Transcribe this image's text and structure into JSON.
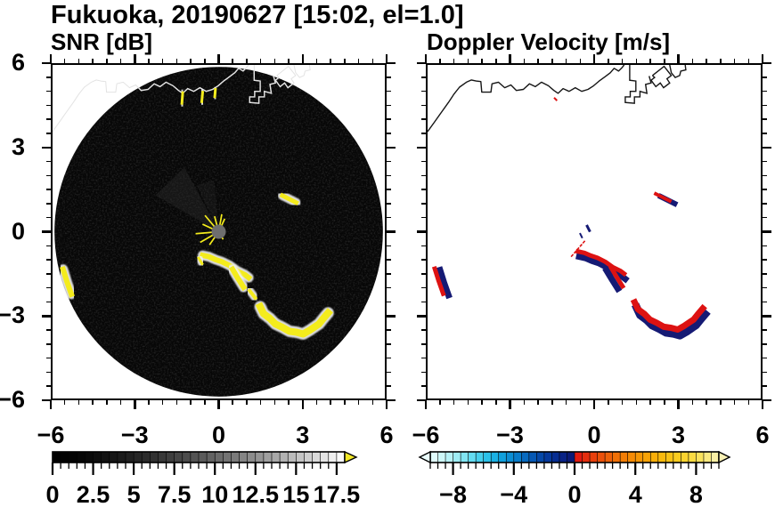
{
  "title": "Fukuoka, 20190627 [15:02, el=1.0]",
  "panels": {
    "snr": {
      "title": "SNR [dB]"
    },
    "vel": {
      "title": "Doppler Velocity [m/s]"
    }
  },
  "colors": {
    "echo_yellow": "#f4ec1c",
    "echo_halo": "#f2f2f2",
    "vel_red": "#dd1212",
    "vel_navy": "#151a74",
    "coast_left": "#fafafa",
    "coast_left_faint": "#cccccc",
    "coast_right": "#151515",
    "radar_disk": "#070707",
    "center_dot": "#6e6e6e",
    "frame": "#000000"
  },
  "chart_data": {
    "type": "heatmap",
    "suptitle": "Fukuoka, 20190627 [15:02, el=1.0]",
    "panels": [
      {
        "title": "SNR [dB]",
        "xlim": [
          -6,
          6
        ],
        "ylim": [
          -6,
          6
        ],
        "colorbar": {
          "range": [
            0,
            18
          ],
          "tick_values": [
            0,
            2.5,
            5,
            7.5,
            10,
            12.5,
            15,
            17.5
          ],
          "tick_labels": [
            "0",
            "2.5",
            "5",
            "7.5",
            "10",
            "12.5",
            "15",
            "17.5"
          ],
          "minor_step": 0.5,
          "major_step": 2.5,
          "style": "grayscale black to white, yellow over-range arrow"
        }
      },
      {
        "title": "Doppler Velocity [m/s]",
        "xlim": [
          -6,
          6
        ],
        "ylim": [
          -6,
          6
        ],
        "colorbar": {
          "range": [
            -9.5,
            9.5
          ],
          "tick_values": [
            -8,
            -4,
            0,
            4,
            8
          ],
          "tick_labels": [
            "−8",
            "−4",
            "0",
            "4",
            "8"
          ],
          "minor_step": 0.5,
          "major_step": 4,
          "style": "diverging cyan-blue-navy / red-orange-cream with under/over arrows"
        }
      }
    ],
    "axis": {
      "range": [
        -6,
        6
      ],
      "major_tick_values": [
        -6,
        -3,
        0,
        3,
        6
      ],
      "major_tick_labels": [
        "−6",
        "−3",
        "0",
        "3",
        "6"
      ],
      "minor_step": 0.5
    },
    "radar": {
      "center": [
        0,
        0
      ],
      "radius_units": 5.93
    },
    "coastline": [
      [
        -6.0,
        3.6
      ],
      [
        -5.75,
        3.95
      ],
      [
        -5.5,
        4.3
      ],
      [
        -5.25,
        4.65
      ],
      [
        -5.05,
        4.95
      ],
      [
        -4.85,
        5.2
      ],
      [
        -4.6,
        5.38
      ],
      [
        -4.42,
        5.46
      ],
      [
        -4.25,
        5.42
      ],
      [
        -4.08,
        5.4
      ],
      [
        -4.05,
        5.02
      ],
      [
        -3.72,
        5.02
      ],
      [
        -3.68,
        5.32
      ],
      [
        -3.45,
        5.38
      ],
      [
        -3.22,
        5.18
      ],
      [
        -3.0,
        5.28
      ],
      [
        -2.8,
        5.08
      ],
      [
        -2.55,
        5.12
      ],
      [
        -2.33,
        5.32
      ],
      [
        -2.12,
        5.22
      ],
      [
        -1.9,
        5.38
      ],
      [
        -1.65,
        5.25
      ],
      [
        -1.45,
        5.08
      ],
      [
        -1.3,
        4.98
      ],
      [
        -1.12,
        5.15
      ],
      [
        -0.9,
        5.05
      ],
      [
        -0.68,
        5.18
      ],
      [
        -0.45,
        5.05
      ],
      [
        -0.22,
        5.12
      ],
      [
        -0.02,
        5.25
      ],
      [
        0.18,
        5.42
      ],
      [
        0.4,
        5.58
      ],
      [
        0.58,
        5.72
      ],
      [
        0.72,
        5.88
      ],
      [
        0.88,
        5.78
      ],
      [
        1.0,
        5.9
      ],
      [
        1.08,
        6.0
      ]
    ],
    "harbors": [
      [
        [
          1.28,
          6.0
        ],
        [
          1.28,
          5.45
        ],
        [
          1.5,
          5.42
        ],
        [
          1.5,
          5.05
        ],
        [
          1.3,
          5.05
        ],
        [
          1.3,
          4.85
        ],
        [
          1.12,
          4.85
        ],
        [
          1.12,
          4.65
        ],
        [
          1.45,
          4.62
        ],
        [
          1.45,
          4.85
        ],
        [
          1.65,
          4.85
        ],
        [
          1.65,
          5.05
        ],
        [
          1.9,
          4.98
        ],
        [
          1.85,
          5.3
        ],
        [
          2.05,
          5.35
        ],
        [
          1.98,
          5.6
        ]
      ],
      [
        [
          2.1,
          5.62
        ],
        [
          2.52,
          5.95
        ],
        [
          2.78,
          5.62
        ],
        [
          2.62,
          5.5
        ],
        [
          2.72,
          5.35
        ],
        [
          2.5,
          5.18
        ],
        [
          2.38,
          5.35
        ],
        [
          2.22,
          5.22
        ],
        [
          2.05,
          5.45
        ],
        [
          2.18,
          5.55
        ],
        [
          2.1,
          5.62
        ]
      ],
      [
        [
          2.72,
          6.0
        ],
        [
          2.78,
          5.72
        ],
        [
          2.92,
          5.55
        ],
        [
          3.08,
          5.62
        ],
        [
          3.12,
          5.78
        ],
        [
          3.3,
          5.82
        ],
        [
          3.28,
          6.0
        ]
      ]
    ],
    "echoes": [
      {
        "name": "chain-upper",
        "pts": [
          [
            -0.58,
            -0.85
          ],
          [
            -0.35,
            -0.9
          ],
          [
            -0.12,
            -1.0
          ],
          [
            0.12,
            -1.08
          ],
          [
            0.4,
            -1.22
          ],
          [
            0.68,
            -1.42
          ],
          [
            0.95,
            -1.55
          ],
          [
            1.08,
            -1.65
          ]
        ],
        "w": 6,
        "red_off": [
          0.0,
          0.14
        ],
        "navy_off": [
          0.04,
          -0.05
        ]
      },
      {
        "name": "chain-short",
        "pts": [
          [
            0.5,
            -1.35
          ],
          [
            0.68,
            -1.65
          ],
          [
            0.9,
            -2.0
          ]
        ],
        "w": 6,
        "red_off": [
          0.12,
          0.04
        ],
        "navy_off": [
          -0.05,
          -0.05
        ]
      },
      {
        "name": "crescent",
        "pts": [
          [
            1.5,
            -2.7
          ],
          [
            1.62,
            -2.95
          ],
          [
            1.85,
            -3.12
          ],
          [
            2.05,
            -3.32
          ],
          [
            2.3,
            -3.44
          ],
          [
            2.55,
            -3.58
          ],
          [
            2.82,
            -3.62
          ],
          [
            3.05,
            -3.68
          ],
          [
            3.28,
            -3.55
          ],
          [
            3.5,
            -3.4
          ],
          [
            3.62,
            -3.32
          ],
          [
            3.78,
            -3.12
          ],
          [
            3.95,
            -2.92
          ]
        ],
        "w": 8,
        "red_off": [
          -0.04,
          0.16
        ],
        "navy_off": [
          0.04,
          -0.05
        ]
      },
      {
        "name": "west-blob",
        "pts": [
          [
            -5.62,
            -1.35
          ],
          [
            -5.48,
            -1.8
          ],
          [
            -5.32,
            -2.25
          ]
        ],
        "w": 6,
        "red_off": [
          -0.12,
          0.02
        ],
        "navy_off": [
          0.07,
          -0.03
        ]
      },
      {
        "name": "northeast-streak",
        "pts": [
          [
            2.3,
            1.3
          ],
          [
            2.8,
            1.05
          ]
        ],
        "w": 5,
        "red_off": [
          -0.08,
          0.06
        ],
        "navy_off": [
          0.1,
          -0.04
        ]
      }
    ],
    "left_only_echoes": [
      {
        "pts": [
          [
            -1.3,
            5.0
          ],
          [
            -1.33,
            4.62
          ]
        ],
        "w": 3
      },
      {
        "pts": [
          [
            -0.58,
            5.02
          ],
          [
            -0.61,
            4.68
          ]
        ],
        "w": 3
      },
      {
        "pts": [
          [
            -0.12,
            5.12
          ],
          [
            -0.14,
            4.86
          ]
        ],
        "w": 3
      },
      {
        "pts": [
          [
            1.12,
            -2.12
          ],
          [
            1.32,
            -2.38
          ]
        ],
        "w": 4
      },
      {
        "pts": [
          [
            -0.72,
            -0.95
          ],
          [
            -0.6,
            -1.15
          ]
        ],
        "w": 3
      }
    ],
    "right_only_specks": [
      {
        "color": "red",
        "pts": [
          [
            -1.42,
            4.8
          ],
          [
            -1.36,
            4.74
          ]
        ],
        "w": 2,
        "dash": ""
      },
      {
        "color": "navy",
        "pts": [
          [
            -0.25,
            0.2
          ],
          [
            -0.17,
            0.04
          ]
        ],
        "w": 3,
        "dash": ""
      },
      {
        "color": "red",
        "pts": [
          [
            -0.35,
            -0.35
          ],
          [
            -0.85,
            -0.92
          ]
        ],
        "w": 1.6,
        "dash": "2 3"
      },
      {
        "color": "navy",
        "pts": [
          [
            -0.5,
            -0.08
          ],
          [
            -0.44,
            -0.2
          ]
        ],
        "w": 2,
        "dash": ""
      }
    ],
    "center_spikes": [
      [
        65,
        16
      ],
      [
        80,
        20
      ],
      [
        105,
        18
      ],
      [
        130,
        24
      ],
      [
        155,
        20
      ],
      [
        185,
        26
      ],
      [
        210,
        24
      ],
      [
        235,
        18
      ],
      [
        300,
        10
      ]
    ],
    "snr_colormap": {
      "vmin": 0,
      "vmax": 18,
      "segment": 0.5,
      "gamma": 1.55,
      "over_color": "#f2e827"
    },
    "vel_colormap": {
      "vmin": -9.5,
      "vmax": 9.5,
      "segment": 0.5,
      "under_color": "#eafdfc",
      "over_color": "#faf2b6",
      "neg_stops": [
        [
          0.0,
          "#eafdfc"
        ],
        [
          0.08,
          "#cdf7f8"
        ],
        [
          0.16,
          "#abf0f6"
        ],
        [
          0.24,
          "#7fe5f3"
        ],
        [
          0.32,
          "#52d5ef"
        ],
        [
          0.4,
          "#28c0e9"
        ],
        [
          0.48,
          "#12a7e0"
        ],
        [
          0.56,
          "#0b8cd3"
        ],
        [
          0.64,
          "#0870c3"
        ],
        [
          0.72,
          "#0655b2"
        ],
        [
          0.8,
          "#063da0"
        ],
        [
          0.88,
          "#072a8e"
        ],
        [
          0.95,
          "#0a1d7e"
        ],
        [
          1.0,
          "#0d1670"
        ]
      ],
      "pos_stops": [
        [
          0.0,
          "#e01111"
        ],
        [
          0.1,
          "#e6360d"
        ],
        [
          0.2,
          "#ec560a"
        ],
        [
          0.3,
          "#f17307"
        ],
        [
          0.4,
          "#f58c05"
        ],
        [
          0.5,
          "#f7a306"
        ],
        [
          0.6,
          "#f9b80c"
        ],
        [
          0.7,
          "#f9ca1c"
        ],
        [
          0.8,
          "#fad93a"
        ],
        [
          0.88,
          "#fae462"
        ],
        [
          0.94,
          "#faec8c"
        ],
        [
          1.0,
          "#faf2b6"
        ]
      ]
    }
  }
}
